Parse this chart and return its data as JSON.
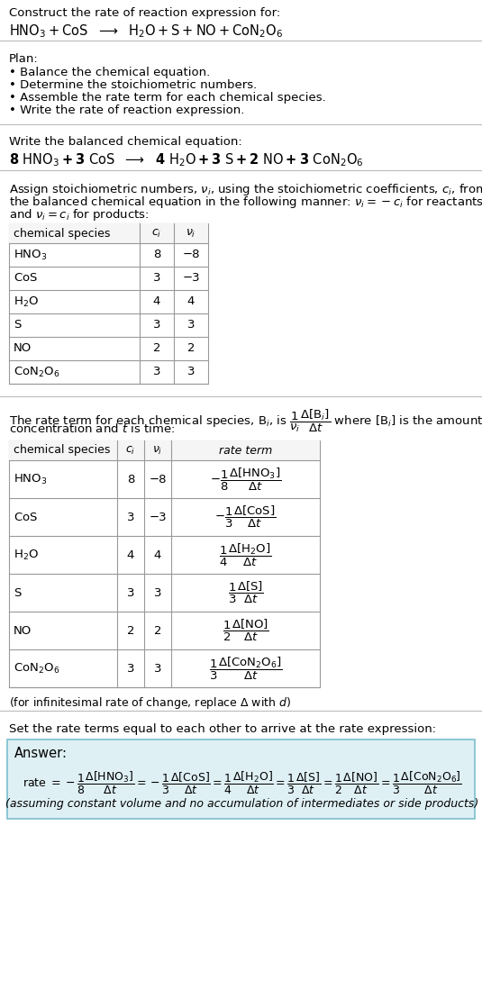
{
  "bg_color": "#ffffff",
  "text_color": "#000000",
  "title_line1": "Construct the rate of reaction expression for:",
  "title_eq": "$\\mathrm{HNO_3 + CoS}$  $\\longrightarrow$  $\\mathrm{H_2O + S + NO + CoN_2O_6}$",
  "plan_header": "Plan:",
  "plan_items": [
    "• Balance the chemical equation.",
    "• Determine the stoichiometric numbers.",
    "• Assemble the rate term for each chemical species.",
    "• Write the rate of reaction expression."
  ],
  "balanced_header": "Write the balanced chemical equation:",
  "balanced_eq": "$\\mathbf{8\\ \\mathrm{HNO_3} + 3\\ \\mathrm{CoS}}$  $\\longrightarrow$  $\\mathbf{4\\ \\mathrm{H_2O} + 3\\ \\mathrm{S} + 2\\ \\mathrm{NO} + 3\\ \\mathrm{CoN_2O_6}}$",
  "stoich_intro_parts": [
    "Assign stoichiometric numbers, $\\nu_i$, using the stoichiometric coefficients, $c_i$, from",
    "the balanced chemical equation in the following manner: $\\nu_i = -c_i$ for reactants",
    "and $\\nu_i = c_i$ for products:"
  ],
  "table1_headers": [
    "chemical species",
    "$c_i$",
    "$\\nu_i$"
  ],
  "table1_rows": [
    [
      "$\\mathrm{HNO_3}$",
      "8",
      "−8"
    ],
    [
      "$\\mathrm{CoS}$",
      "3",
      "−3"
    ],
    [
      "$\\mathrm{H_2O}$",
      "4",
      "4"
    ],
    [
      "S",
      "3",
      "3"
    ],
    [
      "NO",
      "2",
      "2"
    ],
    [
      "$\\mathrm{CoN_2O_6}$",
      "3",
      "3"
    ]
  ],
  "rate_intro_parts": [
    "The rate term for each chemical species, $\\mathrm{B}_i$, is $\\dfrac{1}{\\nu_i}\\dfrac{\\Delta[\\mathrm{B}_i]}{\\Delta t}$ where $[\\mathrm{B}_i]$ is the amount",
    "concentration and $t$ is time:"
  ],
  "table2_headers": [
    "chemical species",
    "$c_i$",
    "$\\nu_i$",
    "rate term"
  ],
  "table2_rows": [
    [
      "$\\mathrm{HNO_3}$",
      "8",
      "−8",
      "$-\\dfrac{1}{8}\\dfrac{\\Delta[\\mathrm{HNO_3}]}{\\Delta t}$"
    ],
    [
      "$\\mathrm{CoS}$",
      "3",
      "−3",
      "$-\\dfrac{1}{3}\\dfrac{\\Delta[\\mathrm{CoS}]}{\\Delta t}$"
    ],
    [
      "$\\mathrm{H_2O}$",
      "4",
      "4",
      "$\\dfrac{1}{4}\\dfrac{\\Delta[\\mathrm{H_2O}]}{\\Delta t}$"
    ],
    [
      "S",
      "3",
      "3",
      "$\\dfrac{1}{3}\\dfrac{\\Delta[\\mathrm{S}]}{\\Delta t}$"
    ],
    [
      "NO",
      "2",
      "2",
      "$\\dfrac{1}{2}\\dfrac{\\Delta[\\mathrm{NO}]}{\\Delta t}$"
    ],
    [
      "$\\mathrm{CoN_2O_6}$",
      "3",
      "3",
      "$\\dfrac{1}{3}\\dfrac{\\Delta[\\mathrm{CoN_2O_6}]}{\\Delta t}$"
    ]
  ],
  "infinitesimal_note": "(for infinitesimal rate of change, replace $\\Delta$ with $d$)",
  "set_equal_text": "Set the rate terms equal to each other to arrive at the rate expression:",
  "answer_label": "Answer:",
  "answer_rate_parts": [
    "rate $= -\\dfrac{1}{8}\\dfrac{\\Delta[\\mathrm{HNO_3}]}{\\Delta t} = -\\dfrac{1}{3}\\dfrac{\\Delta[\\mathrm{CoS}]}{\\Delta t} = \\dfrac{1}{4}\\dfrac{\\Delta[\\mathrm{H_2O}]}{\\Delta t} = \\dfrac{1}{3}\\dfrac{\\Delta[\\mathrm{S}]}{\\Delta t} = \\dfrac{1}{2}\\dfrac{\\Delta[\\mathrm{NO}]}{\\Delta t} = \\dfrac{1}{3}\\dfrac{\\Delta[\\mathrm{CoN_2O_6}]}{\\Delta t}$"
  ],
  "answer_note": "(assuming constant volume and no accumulation of intermediates or side products)",
  "answer_box_color": "#dff0f5",
  "answer_box_border": "#7abfcc",
  "line_color": "#bbbbbb",
  "table_border_color": "#999999",
  "table_header_bg": "#f5f5f5"
}
